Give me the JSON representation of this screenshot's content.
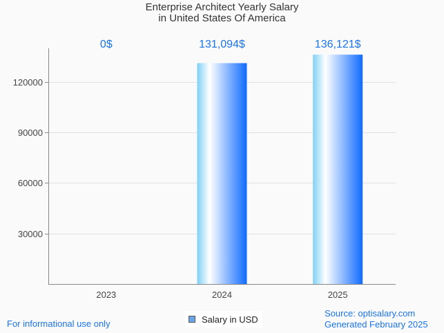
{
  "title_lines": [
    "Enterprise Architect Yearly Salary",
    "in United States Of America"
  ],
  "chart_data": {
    "type": "bar",
    "title": "Enterprise Architect Yearly Salary in United States Of America",
    "categories": [
      "2023",
      "2024",
      "2025"
    ],
    "series": [
      {
        "name": "Salary in USD",
        "values": [
          0,
          131094,
          136121
        ]
      }
    ],
    "data_labels": [
      "0$",
      "131,094$",
      "136,121$"
    ],
    "yticks": [
      30000,
      60000,
      90000,
      120000
    ],
    "ylim": [
      0,
      140000
    ],
    "xlabel": "",
    "ylabel": "",
    "grid": true,
    "legend": "bottom-center"
  },
  "legend": {
    "label": "Salary in USD",
    "color": "#6aa5e6"
  },
  "footer": {
    "left": "For informational use only",
    "source": "Source: optisalary.com",
    "generated": "Generated February 2025"
  },
  "colors": {
    "label": "#1a73e8",
    "bar_start": "#7fd0f5",
    "bar_mid": "#ffffff",
    "bar_end": "#0f6bff"
  }
}
